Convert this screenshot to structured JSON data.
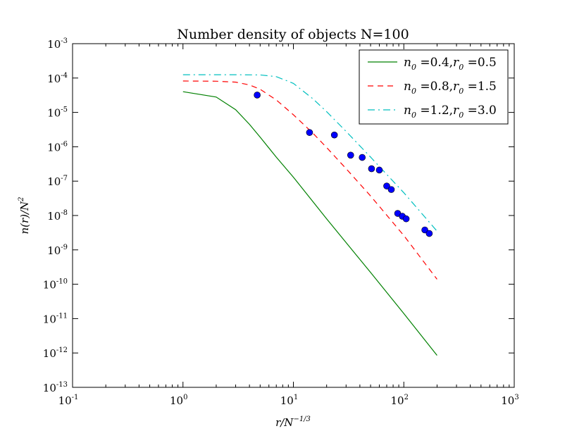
{
  "chart_data": {
    "type": "line",
    "title": "Number density of objects N=100",
    "xlabel": "r/N^{-1/3}",
    "ylabel": "n(r)/N^{2}",
    "xscale": "log",
    "yscale": "log",
    "xlim": [
      0.1,
      1000
    ],
    "ylim": [
      1e-13,
      0.001
    ],
    "grid": false,
    "legend_position": "top-right",
    "x_ticks": [
      {
        "base": "10",
        "exp": "-1",
        "value": 0.1
      },
      {
        "base": "10",
        "exp": "0",
        "value": 1
      },
      {
        "base": "10",
        "exp": "1",
        "value": 10
      },
      {
        "base": "10",
        "exp": "2",
        "value": 100
      },
      {
        "base": "10",
        "exp": "3",
        "value": 1000
      }
    ],
    "y_ticks": [
      {
        "base": "10",
        "exp": "-3",
        "value": 0.001
      },
      {
        "base": "10",
        "exp": "-4",
        "value": 0.0001
      },
      {
        "base": "10",
        "exp": "-5",
        "value": 1e-05
      },
      {
        "base": "10",
        "exp": "-6",
        "value": 1e-06
      },
      {
        "base": "10",
        "exp": "-7",
        "value": 1e-07
      },
      {
        "base": "10",
        "exp": "-8",
        "value": 1e-08
      },
      {
        "base": "10",
        "exp": "-9",
        "value": 1e-09
      },
      {
        "base": "10",
        "exp": "-10",
        "value": 1e-10
      },
      {
        "base": "10",
        "exp": "-11",
        "value": 1e-11
      },
      {
        "base": "10",
        "exp": "-12",
        "value": 1e-12
      },
      {
        "base": "10",
        "exp": "-13",
        "value": 1e-13
      }
    ],
    "series": [
      {
        "name": "n_0 = 0.4, r_0 = 0.5",
        "label_parts": [
          "n",
          "0",
          " =0.4,",
          "r",
          "0",
          " =0.5"
        ],
        "kind": "line",
        "color": "#008000",
        "dash": "solid",
        "x": [
          1,
          2,
          3,
          4,
          5,
          7,
          10,
          20,
          50,
          100,
          200
        ],
        "y": [
          4e-05,
          2.8e-05,
          1.2e-05,
          4.5e-06,
          1.9e-06,
          5e-07,
          1.3e-07,
          8e-09,
          2.2e-10,
          1.4e-11,
          8.5e-13
        ]
      },
      {
        "name": "n_0 = 0.8, r_0 = 1.5",
        "label_parts": [
          "n",
          "0",
          " =0.8,",
          "r",
          "0",
          " =1.5"
        ],
        "kind": "line",
        "color": "#ff0000",
        "dash": "dashed",
        "x": [
          1,
          2,
          3,
          4,
          5,
          7,
          10,
          15,
          20,
          30,
          50,
          100,
          200
        ],
        "y": [
          8.2e-05,
          8.1e-05,
          7.6e-05,
          6.3e-05,
          4.7e-05,
          2.3e-05,
          8.5e-06,
          2.5e-06,
          9.5e-07,
          2.3e-07,
          3.7e-08,
          2.6e-09,
          1.4e-10
        ]
      },
      {
        "name": "n_0 = 1.2, r_0 = 3.0",
        "label_parts": [
          "n",
          "0",
          " =1.2,",
          "r",
          "0",
          " =3.0"
        ],
        "kind": "line",
        "color": "#00bfbf",
        "dash": "dashdot",
        "x": [
          1,
          2,
          3,
          5,
          7,
          10,
          15,
          20,
          30,
          50,
          100,
          200
        ],
        "y": [
          0.000125,
          0.000125,
          0.000125,
          0.000123,
          0.00011,
          7e-05,
          2.5e-05,
          1.05e-05,
          2.8e-06,
          5e-07,
          4.6e-08,
          3.5e-09
        ]
      },
      {
        "name": "data points",
        "kind": "scatter",
        "color": "#0000ff",
        "x": [
          4.7,
          14,
          23.5,
          33,
          42,
          51,
          60,
          70,
          77,
          88,
          97,
          105,
          155,
          170
        ],
        "y": [
          3.2e-05,
          2.6e-06,
          2.2e-06,
          5.7e-07,
          4.9e-07,
          2.3e-07,
          2.1e-07,
          7.2e-08,
          5.7e-08,
          1.15e-08,
          9.5e-09,
          8e-09,
          3.8e-09,
          3e-09
        ]
      }
    ]
  }
}
